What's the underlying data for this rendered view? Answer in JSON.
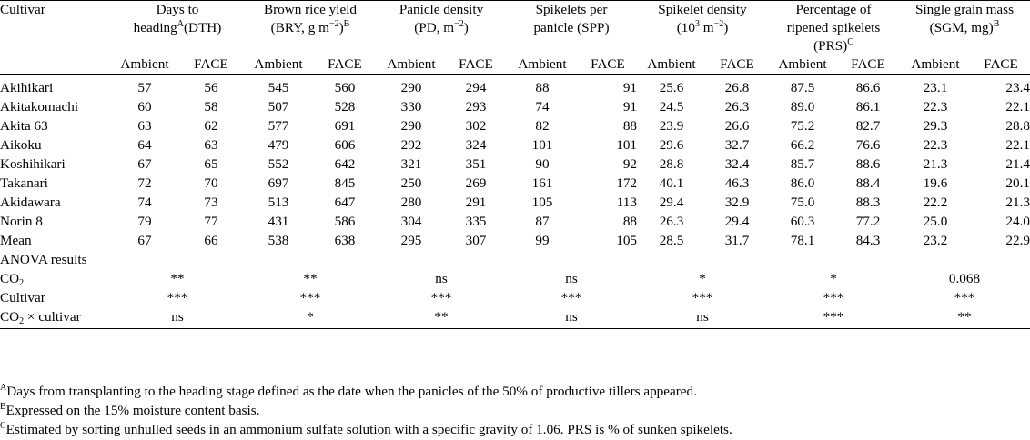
{
  "header": {
    "cultivar": "Cultivar",
    "dth": {
      "l1": "Days to",
      "l2": "heading",
      "sup": "A",
      "l2b": "(DTH)"
    },
    "bry": {
      "l1": "Brown rice yield",
      "l2a": "(BRY, g m",
      "exp": "−2",
      "l2b": ")",
      "sup": "B"
    },
    "pd": {
      "l1": "Panicle density",
      "l2a": "(PD, m",
      "exp": "−2",
      "l2b": ")"
    },
    "spp": {
      "l1": "Spikelets per",
      "l2": "panicle (SPP)"
    },
    "sd": {
      "l1": "Spikelet density",
      "l2a": "(10",
      "exp3": "3",
      "l2b": " m",
      "exp": "−2",
      "l2c": ")"
    },
    "prs": {
      "l1": "Percentage of",
      "l2": "ripened spikelets",
      "l3": "(PRS)",
      "sup": "C"
    },
    "sgm": {
      "l1": "Single grain mass",
      "l2": "(SGM, mg)",
      "sup": "B"
    },
    "ambient": "Ambient",
    "face": "FACE"
  },
  "rows": [
    {
      "name": "Akihikari",
      "v": [
        "57",
        "56",
        "545",
        "560",
        "290",
        "294",
        "88",
        "91",
        "25.6",
        "26.8",
        "87.5",
        "86.6",
        "23.1",
        "23.4"
      ]
    },
    {
      "name": "Akitakomachi",
      "v": [
        "60",
        "58",
        "507",
        "528",
        "330",
        "293",
        "74",
        "91",
        "24.5",
        "26.3",
        "89.0",
        "86.1",
        "22.3",
        "22.1"
      ]
    },
    {
      "name": "Akita 63",
      "v": [
        "63",
        "62",
        "577",
        "691",
        "290",
        "302",
        "82",
        "88",
        "23.9",
        "26.6",
        "75.2",
        "82.7",
        "29.3",
        "28.8"
      ]
    },
    {
      "name": "Aikoku",
      "v": [
        "64",
        "63",
        "479",
        "606",
        "292",
        "324",
        "101",
        "101",
        "29.6",
        "32.7",
        "66.2",
        "76.6",
        "22.3",
        "22.1"
      ]
    },
    {
      "name": "Koshihikari",
      "v": [
        "67",
        "65",
        "552",
        "642",
        "321",
        "351",
        "90",
        "92",
        "28.8",
        "32.4",
        "85.7",
        "88.6",
        "21.3",
        "21.4"
      ]
    },
    {
      "name": "Takanari",
      "v": [
        "72",
        "70",
        "697",
        "845",
        "250",
        "269",
        "161",
        "172",
        "40.1",
        "46.3",
        "86.0",
        "88.4",
        "19.6",
        "20.1"
      ]
    },
    {
      "name": "Akidawara",
      "v": [
        "74",
        "73",
        "513",
        "647",
        "280",
        "291",
        "105",
        "113",
        "29.4",
        "32.9",
        "75.0",
        "88.3",
        "22.2",
        "21.3"
      ]
    },
    {
      "name": "Norin 8",
      "v": [
        "79",
        "77",
        "431",
        "586",
        "304",
        "335",
        "87",
        "88",
        "26.3",
        "29.4",
        "60.3",
        "77.2",
        "25.0",
        "24.0"
      ]
    },
    {
      "name": "Mean",
      "v": [
        "67",
        "66",
        "538",
        "638",
        "295",
        "307",
        "99",
        "105",
        "28.5",
        "31.7",
        "78.1",
        "84.3",
        "23.2",
        "22.9"
      ]
    }
  ],
  "anova": {
    "title": "ANOVA results",
    "rows": [
      {
        "name_a": "CO",
        "name_sub": "2",
        "name_b": "",
        "v": [
          "**",
          "**",
          "ns",
          "ns",
          "*",
          "*",
          "0.068"
        ]
      },
      {
        "name_a": "Cultivar",
        "name_sub": "",
        "name_b": "",
        "v": [
          "***",
          "***",
          "***",
          "***",
          "***",
          "***",
          "***"
        ]
      },
      {
        "name_a": "CO",
        "name_sub": "2",
        "name_b": " × cultivar",
        "v": [
          "ns",
          "*",
          "**",
          "ns",
          "ns",
          "***",
          "**"
        ]
      }
    ]
  },
  "notes": [
    {
      "sup": "A",
      "text": "Days from transplanting to the heading stage defined as the date when the panicles of the 50% of productive tillers appeared."
    },
    {
      "sup": "B",
      "text": "Expressed on the 15% moisture content basis."
    },
    {
      "sup": "C",
      "text": "Estimated by sorting unhulled seeds in an ammonium sulfate solution with a specific gravity of 1.06. PRS is % of sunken spikelets."
    }
  ]
}
